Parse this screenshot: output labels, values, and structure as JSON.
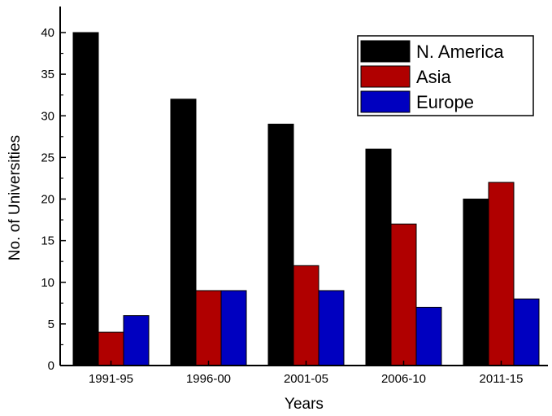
{
  "chart_data": {
    "type": "bar",
    "title": "",
    "xlabel": "Years",
    "ylabel": "No. of Universities",
    "categories": [
      "1991-95",
      "1996-00",
      "2001-05",
      "2006-10",
      "2011-15"
    ],
    "series": [
      {
        "name": "N. America",
        "color": "#000000",
        "values": [
          40,
          32,
          29,
          26,
          20
        ]
      },
      {
        "name": "Asia",
        "color": "#b00000",
        "values": [
          4,
          9,
          12,
          17,
          22
        ]
      },
      {
        "name": "Europe",
        "color": "#0000c0",
        "values": [
          6,
          9,
          9,
          7,
          8
        ]
      }
    ],
    "ylim": [
      0,
      45
    ],
    "yticks": [
      0,
      5,
      10,
      15,
      20,
      25,
      30,
      35,
      40
    ],
    "grid": false,
    "legend_position": "top-right"
  }
}
